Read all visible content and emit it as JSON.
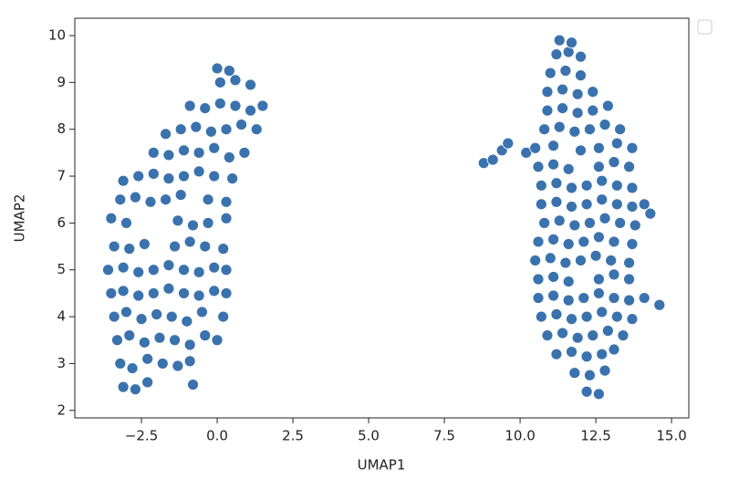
{
  "chart_data": {
    "type": "scatter",
    "xlabel": "UMAP1",
    "ylabel": "UMAP2",
    "color": "#3a72ad",
    "x": [
      -3.1,
      -2.7,
      -2.3,
      -0.8,
      -3.2,
      -2.8,
      -2.3,
      -1.8,
      -1.3,
      -0.9,
      -3.3,
      -2.9,
      -2.4,
      -1.9,
      -1.4,
      -0.9,
      -0.4,
      0.0,
      -3.4,
      -3.0,
      -2.5,
      -2.0,
      -1.5,
      -1.0,
      -0.5,
      0.2,
      -3.5,
      -3.1,
      -2.6,
      -2.1,
      -1.6,
      -1.1,
      -0.6,
      -0.1,
      0.3,
      -3.6,
      -3.1,
      -2.6,
      -2.1,
      -1.6,
      -1.1,
      -0.6,
      -0.1,
      0.3,
      -3.4,
      -2.9,
      -2.4,
      -1.4,
      -0.9,
      -0.4,
      0.2,
      -3.5,
      -3.0,
      -1.3,
      -0.8,
      -0.3,
      0.3,
      -3.2,
      -2.7,
      -2.2,
      -1.7,
      -1.2,
      -0.3,
      0.3,
      -3.1,
      -2.6,
      -2.1,
      -1.6,
      -1.1,
      -0.6,
      -0.1,
      0.5,
      -2.1,
      -1.6,
      -1.1,
      -0.6,
      -0.1,
      0.4,
      0.9,
      -1.7,
      -1.2,
      -0.7,
      -0.2,
      0.3,
      0.8,
      1.3,
      -0.9,
      -0.4,
      0.1,
      0.6,
      1.1,
      1.5,
      0.1,
      0.6,
      1.1,
      0.0,
      0.4,
      8.8,
      9.1,
      9.4,
      9.6,
      10.2,
      12.2,
      12.6,
      11.8,
      12.3,
      12.8,
      11.2,
      11.7,
      12.2,
      12.7,
      13.1,
      10.9,
      11.4,
      11.9,
      12.4,
      12.9,
      13.4,
      10.7,
      11.2,
      11.7,
      12.2,
      12.7,
      13.2,
      13.7,
      10.6,
      11.1,
      11.6,
      12.1,
      12.6,
      13.1,
      13.6,
      14.1,
      14.6,
      10.6,
      11.1,
      11.6,
      12.6,
      13.1,
      13.6,
      10.5,
      11.0,
      11.5,
      12.0,
      12.5,
      13.0,
      13.6,
      10.6,
      11.1,
      11.6,
      12.1,
      12.6,
      13.1,
      13.7,
      10.8,
      11.3,
      11.8,
      12.3,
      12.8,
      13.3,
      13.8,
      14.3,
      10.7,
      11.2,
      11.7,
      12.2,
      12.7,
      13.2,
      13.7,
      14.1,
      10.7,
      11.2,
      11.7,
      12.2,
      12.7,
      13.2,
      13.7,
      10.6,
      11.1,
      11.6,
      12.6,
      13.1,
      13.6,
      10.5,
      11.1,
      12.0,
      12.6,
      13.2,
      13.7,
      10.8,
      11.3,
      11.8,
      12.3,
      12.8,
      13.3,
      10.9,
      11.4,
      11.9,
      12.4,
      12.9,
      10.9,
      11.4,
      11.9,
      12.4,
      11.0,
      11.5,
      12.0,
      11.2,
      11.6,
      12.0,
      11.3,
      11.7
    ],
    "values": [
      2.5,
      2.45,
      2.6,
      2.55,
      3.0,
      2.9,
      3.1,
      3.0,
      2.95,
      3.05,
      3.5,
      3.6,
      3.45,
      3.55,
      3.5,
      3.4,
      3.6,
      3.5,
      4.0,
      4.1,
      3.95,
      4.05,
      4.0,
      3.9,
      4.1,
      4.0,
      4.5,
      4.55,
      4.45,
      4.5,
      4.6,
      4.5,
      4.45,
      4.55,
      4.5,
      5.0,
      5.05,
      4.95,
      5.0,
      5.1,
      5.0,
      4.95,
      5.05,
      5.0,
      5.5,
      5.45,
      5.55,
      5.5,
      5.6,
      5.5,
      5.45,
      6.1,
      6.0,
      6.05,
      5.95,
      6.0,
      6.1,
      6.5,
      6.55,
      6.45,
      6.5,
      6.6,
      6.5,
      6.45,
      6.9,
      7.0,
      7.05,
      6.95,
      7.0,
      7.1,
      7.0,
      6.95,
      7.5,
      7.45,
      7.55,
      7.5,
      7.6,
      7.4,
      7.5,
      7.9,
      8.0,
      8.05,
      7.95,
      8.0,
      8.1,
      8.0,
      8.5,
      8.45,
      8.55,
      8.5,
      8.4,
      8.5,
      9.0,
      9.05,
      8.95,
      9.3,
      9.25,
      7.28,
      7.35,
      7.55,
      7.7,
      7.5,
      2.4,
      2.35,
      2.8,
      2.75,
      2.85,
      3.2,
      3.25,
      3.15,
      3.2,
      3.3,
      3.6,
      3.65,
      3.55,
      3.6,
      3.7,
      3.6,
      4.0,
      4.05,
      3.95,
      4.0,
      4.1,
      4.0,
      3.95,
      4.4,
      4.45,
      4.35,
      4.4,
      4.5,
      4.4,
      4.35,
      4.4,
      4.25,
      4.8,
      4.85,
      4.75,
      4.8,
      4.9,
      4.8,
      5.2,
      5.25,
      5.15,
      5.2,
      5.3,
      5.2,
      5.15,
      5.6,
      5.65,
      5.55,
      5.6,
      5.7,
      5.6,
      5.55,
      6.0,
      6.05,
      5.95,
      6.0,
      6.1,
      6.0,
      5.95,
      6.2,
      6.4,
      6.45,
      6.35,
      6.4,
      6.5,
      6.4,
      6.35,
      6.4,
      6.8,
      6.85,
      6.75,
      6.8,
      6.9,
      6.8,
      6.75,
      7.2,
      7.25,
      7.15,
      7.2,
      7.3,
      7.2,
      7.6,
      7.65,
      7.55,
      7.6,
      7.7,
      7.6,
      8.0,
      8.05,
      7.95,
      8.0,
      8.1,
      8.0,
      8.4,
      8.45,
      8.35,
      8.4,
      8.5,
      8.8,
      8.85,
      8.75,
      8.8,
      9.2,
      9.25,
      9.15,
      9.6,
      9.65,
      9.55,
      9.9,
      9.85
    ],
    "xlim": [
      -4.7,
      15.57
    ],
    "ylim": [
      1.84,
      10.37
    ],
    "xticks": [
      {
        "value": -2.5,
        "label": "−2.5"
      },
      {
        "value": 0,
        "label": "0.0"
      },
      2.5,
      {
        "value": 5,
        "label": "5.0"
      },
      7.5,
      {
        "value": 10,
        "label": "10.0"
      },
      12.5,
      {
        "value": 15,
        "label": "15.0"
      }
    ],
    "yticks": [
      2,
      3,
      4,
      5,
      6,
      7,
      8,
      9,
      10
    ]
  }
}
